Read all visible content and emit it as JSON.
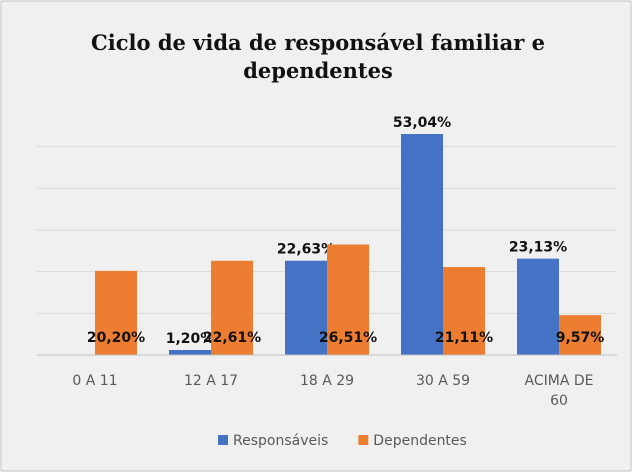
{
  "chart_data": {
    "type": "bar",
    "title": "Ciclo de vida de responsável familiar e dependentes",
    "categories": [
      "0 A 11",
      "12 A 17",
      "18 A 29",
      "30 A 59",
      "ACIMA DE 60"
    ],
    "series": [
      {
        "name": "Responsáveis",
        "color": "#4472c4",
        "values": [
          null,
          1.2,
          22.63,
          53.04,
          23.13
        ],
        "value_labels": [
          null,
          "1,20%",
          "22,63%",
          "53,04%",
          "23,13%"
        ]
      },
      {
        "name": "Dependentes",
        "color": "#ed7d31",
        "values": [
          20.2,
          22.61,
          26.51,
          21.11,
          9.57
        ],
        "value_labels": [
          "20,20%",
          "22,61%",
          "26,51%",
          "21,11%",
          "9,57%"
        ]
      }
    ],
    "ylim": [
      0,
      60
    ],
    "yticks": [
      0,
      10,
      20,
      30,
      40,
      50
    ],
    "grid": true,
    "legend": "bottom"
  }
}
